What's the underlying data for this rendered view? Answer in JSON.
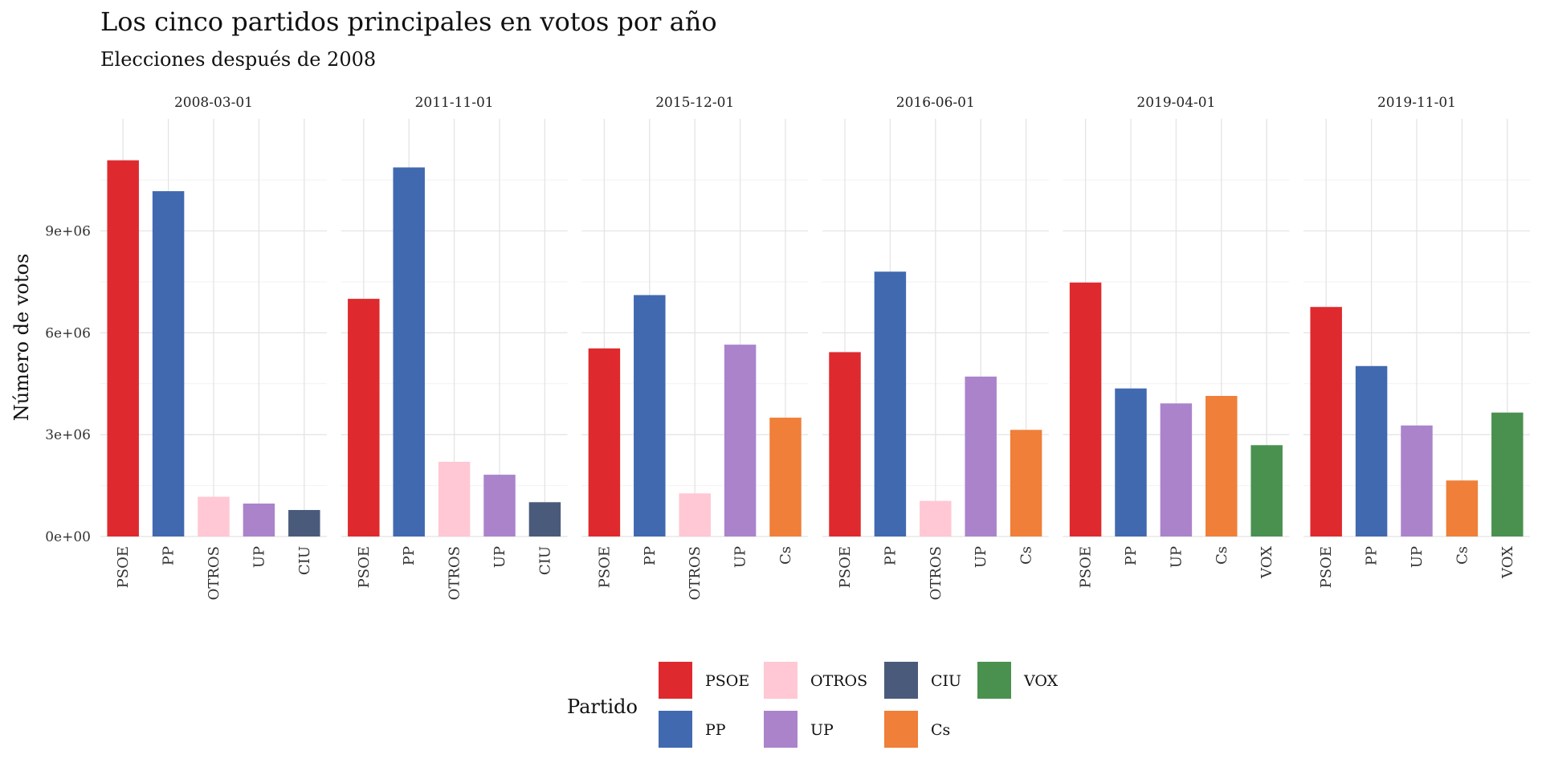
{
  "chart_data": {
    "type": "bar",
    "title": "Los cinco partidos principales en votos por año",
    "subtitle": "Elecciones después de 2008",
    "ylabel": "Número de votos",
    "xlabel": "",
    "ylim": [
      0,
      12300000
    ],
    "yticks": [
      0,
      3000000,
      6000000,
      9000000
    ],
    "ytick_labels": [
      "0e+00",
      "3e+06",
      "6e+06",
      "9e+06"
    ],
    "grid": true,
    "legend_title": "Partido",
    "legend_position": "bottom",
    "colors": {
      "PSOE": "#de2a2e",
      "PP": "#4169b0",
      "OTROS": "#ffc8d4",
      "UP": "#ab83cb",
      "CIU": "#4a5a7a",
      "Cs": "#ef7f39",
      "VOX": "#4a914f"
    },
    "legend": [
      {
        "name": "PSOE"
      },
      {
        "name": "PP"
      },
      {
        "name": "OTROS"
      },
      {
        "name": "UP"
      },
      {
        "name": "CIU"
      },
      {
        "name": "Cs"
      },
      {
        "name": "VOX"
      }
    ],
    "panels": [
      {
        "label": "2008-03-01",
        "bars": [
          {
            "party": "PSOE",
            "value": 11080000
          },
          {
            "party": "PP",
            "value": 10170000
          },
          {
            "party": "OTROS",
            "value": 1170000
          },
          {
            "party": "UP",
            "value": 970000
          },
          {
            "party": "CIU",
            "value": 780000
          }
        ]
      },
      {
        "label": "2011-11-01",
        "bars": [
          {
            "party": "PSOE",
            "value": 7000000
          },
          {
            "party": "PP",
            "value": 10870000
          },
          {
            "party": "OTROS",
            "value": 2200000
          },
          {
            "party": "UP",
            "value": 1820000
          },
          {
            "party": "CIU",
            "value": 1010000
          }
        ]
      },
      {
        "label": "2015-12-01",
        "bars": [
          {
            "party": "PSOE",
            "value": 5540000
          },
          {
            "party": "PP",
            "value": 7110000
          },
          {
            "party": "OTROS",
            "value": 1270000
          },
          {
            "party": "UP",
            "value": 5650000
          },
          {
            "party": "Cs",
            "value": 3500000
          }
        ]
      },
      {
        "label": "2016-06-01",
        "bars": [
          {
            "party": "PSOE",
            "value": 5430000
          },
          {
            "party": "PP",
            "value": 7800000
          },
          {
            "party": "OTROS",
            "value": 1050000
          },
          {
            "party": "UP",
            "value": 4710000
          },
          {
            "party": "Cs",
            "value": 3140000
          }
        ]
      },
      {
        "label": "2019-04-01",
        "bars": [
          {
            "party": "PSOE",
            "value": 7480000
          },
          {
            "party": "PP",
            "value": 4360000
          },
          {
            "party": "UP",
            "value": 3920000
          },
          {
            "party": "Cs",
            "value": 4140000
          },
          {
            "party": "VOX",
            "value": 2690000
          }
        ]
      },
      {
        "label": "2019-11-01",
        "bars": [
          {
            "party": "PSOE",
            "value": 6760000
          },
          {
            "party": "PP",
            "value": 5020000
          },
          {
            "party": "UP",
            "value": 3270000
          },
          {
            "party": "Cs",
            "value": 1650000
          },
          {
            "party": "VOX",
            "value": 3650000
          }
        ]
      }
    ]
  }
}
